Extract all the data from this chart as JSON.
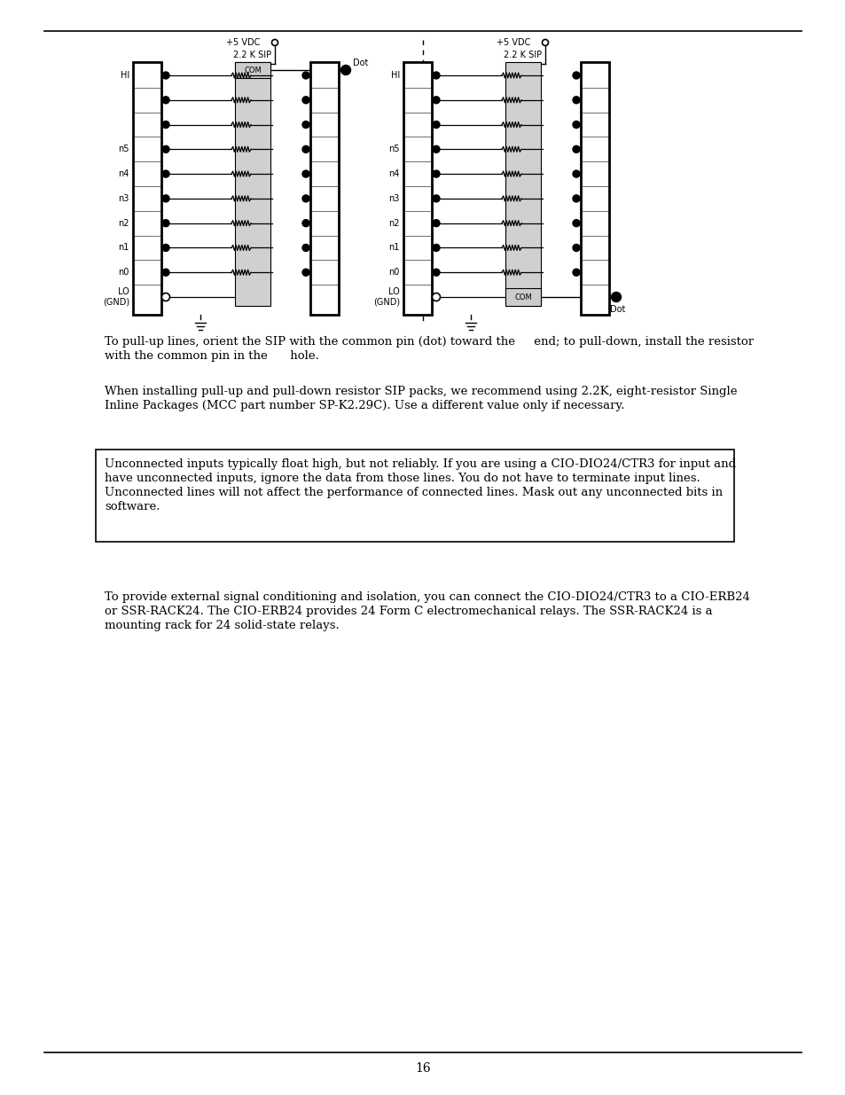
{
  "page_number": "16",
  "bg_color": "#ffffff",
  "text_color": "#000000",
  "para1_line1": "To pull-up lines, orient the SIP with the common pin (dot) toward the     end; to pull-down, install the resistor",
  "para1_line2": "with the common pin in the      hole.",
  "para2_line1": "When installing pull-up and pull-down resistor SIP packs, we recommend using 2.2K, eight-resistor Single",
  "para2_line2": "Inline Packages (MCC part number SP-K2.29C). Use a different value only if necessary.",
  "note_line1": "Unconnected inputs typically float high, but not reliably. If you are using a CIO-DIO24/CTR3 for input and",
  "note_line2": "have unconnected inputs, ignore the data from those lines. You do not have to terminate input lines.",
  "note_line3": "Unconnected lines will not affect the performance of connected lines. Mask out any unconnected bits in",
  "note_line4": "software.",
  "para3_line1": "To provide external signal conditioning and isolation, you can connect the CIO-DIO24/CTR3 to a CIO-ERB24",
  "para3_line2": "or SSR-RACK24. The CIO-ERB24 provides 24 Form C electromechanical relays. The SSR-RACK24 is a",
  "para3_line3": "mounting rack for 24 solid-state relays.",
  "sip_label": "2.2 K SIP",
  "com_label": "COM",
  "dot_label": "Dot",
  "vdc_label": "+5 VDC",
  "row_labels": [
    "HI",
    "",
    "",
    "n5",
    "n4",
    "n3",
    "n2",
    "n1",
    "n0",
    "LO\n(GND)"
  ],
  "font_size_body": 9.5,
  "font_size_diagram": 7.0
}
